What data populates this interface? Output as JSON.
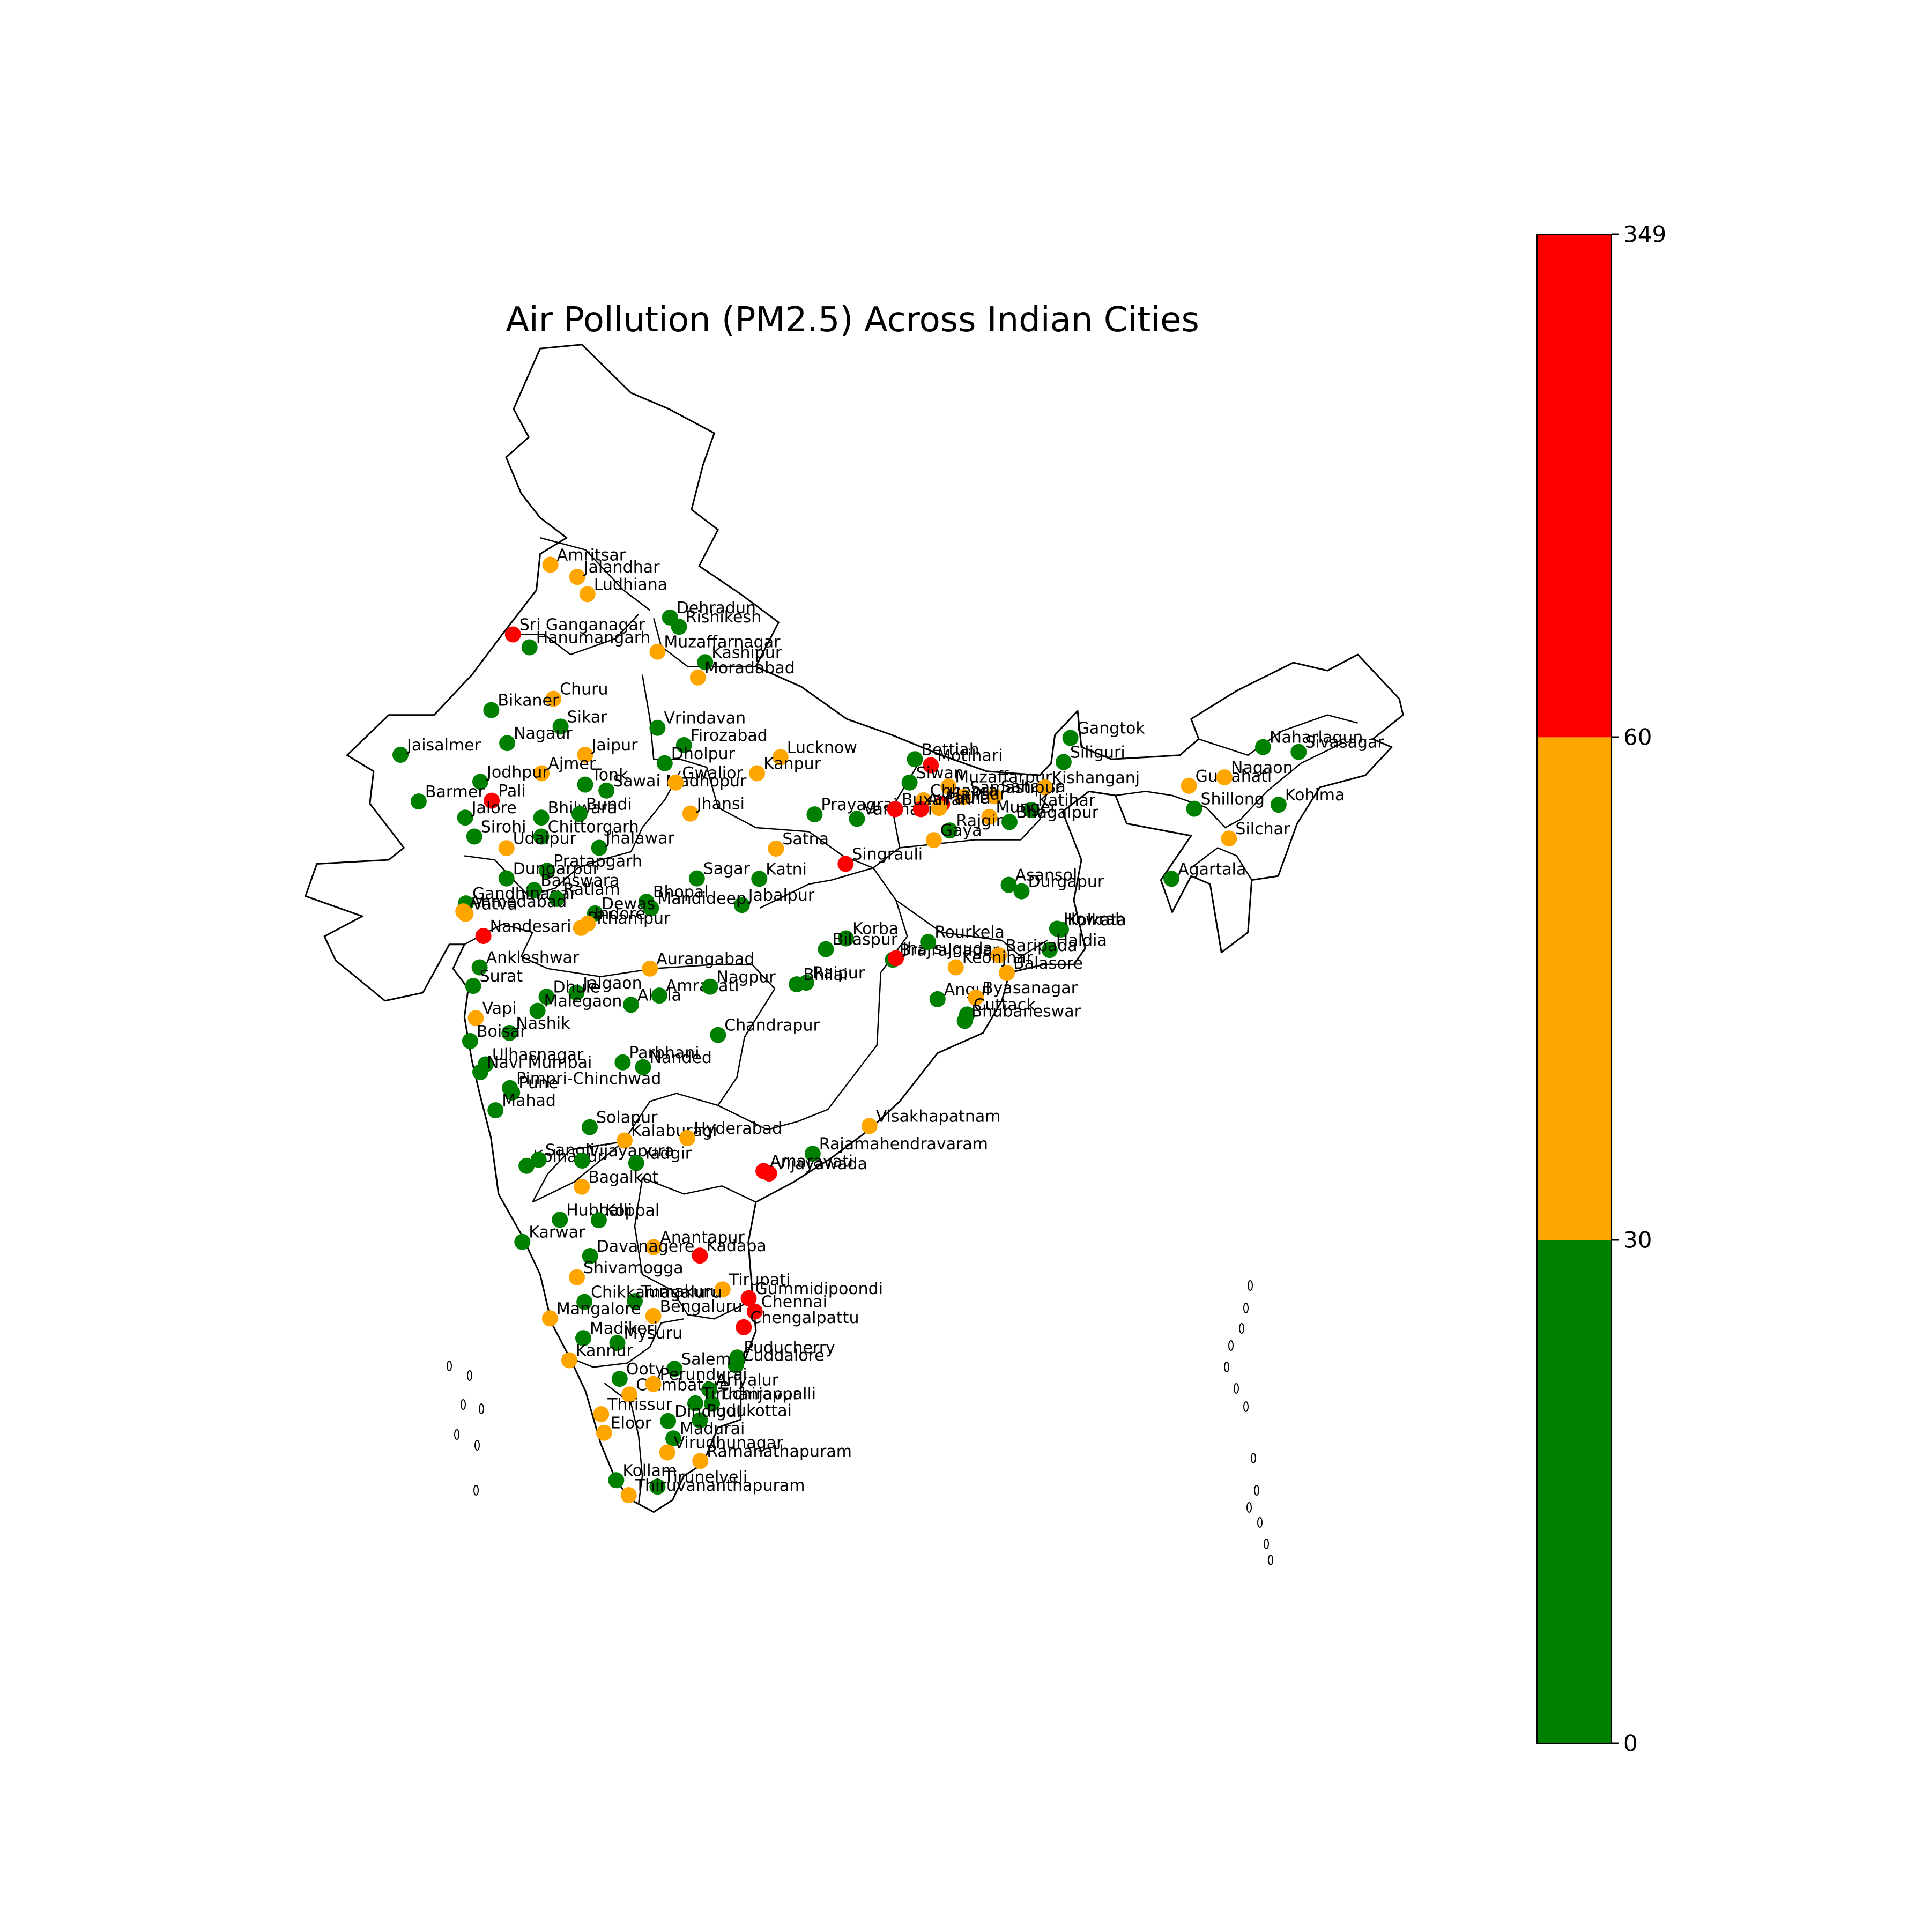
{
  "title": "Air Pollution (PM2.5) Across Indian Cities",
  "colorbar": {
    "bands": [
      {
        "from": 0,
        "to": 30,
        "color": "#008000"
      },
      {
        "from": 30,
        "to": 60,
        "color": "#ffa500"
      },
      {
        "from": 60,
        "to": 349,
        "color": "#ff0000"
      }
    ],
    "ticks": [
      "349",
      "60",
      "30",
      "0"
    ]
  },
  "cities": [
    {
      "name": "Amritsar",
      "lon": 74.87,
      "lat": 31.63,
      "cat": "orange"
    },
    {
      "name": "Jalandhar",
      "lon": 75.58,
      "lat": 31.33,
      "cat": "orange"
    },
    {
      "name": "Ludhiana",
      "lon": 75.85,
      "lat": 30.9,
      "cat": "orange"
    },
    {
      "name": "Sri Ganganagar",
      "lon": 73.88,
      "lat": 29.9,
      "cat": "red"
    },
    {
      "name": "Hanumangarh",
      "lon": 74.32,
      "lat": 29.58,
      "cat": "green"
    },
    {
      "name": "Dehradun",
      "lon": 78.03,
      "lat": 30.32,
      "cat": "green"
    },
    {
      "name": "Rishikesh",
      "lon": 78.27,
      "lat": 30.09,
      "cat": "green"
    },
    {
      "name": "Muzaffarnagar",
      "lon": 77.7,
      "lat": 29.47,
      "cat": "orange"
    },
    {
      "name": "Kashipur",
      "lon": 78.96,
      "lat": 29.21,
      "cat": "green"
    },
    {
      "name": "Moradabad",
      "lon": 78.77,
      "lat": 28.83,
      "cat": "orange"
    },
    {
      "name": "Churu",
      "lon": 74.95,
      "lat": 28.3,
      "cat": "orange"
    },
    {
      "name": "Bikaner",
      "lon": 73.31,
      "lat": 28.02,
      "cat": "green"
    },
    {
      "name": "Sikar",
      "lon": 75.14,
      "lat": 27.61,
      "cat": "green"
    },
    {
      "name": "Vrindavan",
      "lon": 77.7,
      "lat": 27.58,
      "cat": "green"
    },
    {
      "name": "Firozabad",
      "lon": 78.4,
      "lat": 27.15,
      "cat": "green"
    },
    {
      "name": "Jaisalmer",
      "lon": 70.91,
      "lat": 26.91,
      "cat": "green"
    },
    {
      "name": "Nagaur",
      "lon": 73.73,
      "lat": 27.2,
      "cat": "green"
    },
    {
      "name": "Jaipur",
      "lon": 75.79,
      "lat": 26.91,
      "cat": "orange"
    },
    {
      "name": "Dholpur",
      "lon": 77.89,
      "lat": 26.7,
      "cat": "green"
    },
    {
      "name": "Lucknow",
      "lon": 80.95,
      "lat": 26.85,
      "cat": "orange"
    },
    {
      "name": "Kanpur",
      "lon": 80.33,
      "lat": 26.45,
      "cat": "orange"
    },
    {
      "name": "Ajmer",
      "lon": 74.64,
      "lat": 26.45,
      "cat": "orange"
    },
    {
      "name": "Jodhpur",
      "lon": 73.02,
      "lat": 26.24,
      "cat": "green"
    },
    {
      "name": "Tonk",
      "lon": 75.79,
      "lat": 26.17,
      "cat": "green"
    },
    {
      "name": "Sawai Madhopur",
      "lon": 76.35,
      "lat": 26.02,
      "cat": "green"
    },
    {
      "name": "Gwalior",
      "lon": 78.18,
      "lat": 26.22,
      "cat": "orange"
    },
    {
      "name": "Barmer",
      "lon": 71.39,
      "lat": 25.75,
      "cat": "green"
    },
    {
      "name": "Pali",
      "lon": 73.32,
      "lat": 25.77,
      "cat": "red"
    },
    {
      "name": "Jalore",
      "lon": 72.62,
      "lat": 25.35,
      "cat": "green"
    },
    {
      "name": "Bhilwara",
      "lon": 74.63,
      "lat": 25.35,
      "cat": "green"
    },
    {
      "name": "Bundi",
      "lon": 75.64,
      "lat": 25.44,
      "cat": "green"
    },
    {
      "name": "Jhansi",
      "lon": 78.57,
      "lat": 25.45,
      "cat": "orange"
    },
    {
      "name": "Prayagraj",
      "lon": 81.85,
      "lat": 25.43,
      "cat": "green"
    },
    {
      "name": "Varanasi",
      "lon": 82.97,
      "lat": 25.32,
      "cat": "green"
    },
    {
      "name": "Sirohi",
      "lon": 72.86,
      "lat": 24.88,
      "cat": "green"
    },
    {
      "name": "Chittorgarh",
      "lon": 74.63,
      "lat": 24.88,
      "cat": "green"
    },
    {
      "name": "Jhalawar",
      "lon": 76.16,
      "lat": 24.6,
      "cat": "green"
    },
    {
      "name": "Udaipur",
      "lon": 73.71,
      "lat": 24.59,
      "cat": "orange"
    },
    {
      "name": "Satna",
      "lon": 80.83,
      "lat": 24.58,
      "cat": "orange"
    },
    {
      "name": "Singrauli",
      "lon": 82.67,
      "lat": 24.2,
      "cat": "red"
    },
    {
      "name": "Pratapgarh",
      "lon": 74.78,
      "lat": 24.03,
      "cat": "green"
    },
    {
      "name": "Dungarpur",
      "lon": 73.71,
      "lat": 23.84,
      "cat": "green"
    },
    {
      "name": "Banswara",
      "lon": 74.44,
      "lat": 23.55,
      "cat": "green"
    },
    {
      "name": "Sagar",
      "lon": 78.74,
      "lat": 23.84,
      "cat": "green"
    },
    {
      "name": "Katni",
      "lon": 80.39,
      "lat": 23.83,
      "cat": "green"
    },
    {
      "name": "Jabalpur",
      "lon": 79.93,
      "lat": 23.18,
      "cat": "green"
    },
    {
      "name": "Gandhinagar",
      "lon": 72.64,
      "lat": 23.22,
      "cat": "green"
    },
    {
      "name": "Ratlam",
      "lon": 75.04,
      "lat": 23.33,
      "cat": "green"
    },
    {
      "name": "Bhopal",
      "lon": 77.41,
      "lat": 23.26,
      "cat": "green"
    },
    {
      "name": "Mandideep",
      "lon": 77.53,
      "lat": 23.1,
      "cat": "green"
    },
    {
      "name": "Dewas",
      "lon": 76.05,
      "lat": 22.97,
      "cat": "green"
    },
    {
      "name": "Vatva",
      "lon": 72.63,
      "lat": 22.96,
      "cat": "orange"
    },
    {
      "name": "Ahmedabad",
      "lon": 72.57,
      "lat": 23.02,
      "cat": "orange"
    },
    {
      "name": "Pithampur",
      "lon": 75.68,
      "lat": 22.61,
      "cat": "orange"
    },
    {
      "name": "Indore",
      "lon": 75.86,
      "lat": 22.72,
      "cat": "orange"
    },
    {
      "name": "Nandesari",
      "lon": 73.1,
      "lat": 22.41,
      "cat": "red"
    },
    {
      "name": "Ankleshwar",
      "lon": 73.0,
      "lat": 21.63,
      "cat": "green"
    },
    {
      "name": "Surat",
      "lon": 72.83,
      "lat": 21.17,
      "cat": "green"
    },
    {
      "name": "Aurangabad",
      "lon": 77.5,
      "lat": 21.6,
      "cat": "orange"
    },
    {
      "name": "Jalgaon",
      "lon": 75.56,
      "lat": 21.0,
      "cat": "green"
    },
    {
      "name": "Dhule",
      "lon": 74.77,
      "lat": 20.9,
      "cat": "green"
    },
    {
      "name": "Malegaon",
      "lon": 74.53,
      "lat": 20.55,
      "cat": "green"
    },
    {
      "name": "Akola",
      "lon": 77.0,
      "lat": 20.7,
      "cat": "green"
    },
    {
      "name": "Amravati",
      "lon": 77.75,
      "lat": 20.93,
      "cat": "green"
    },
    {
      "name": "Nagpur",
      "lon": 79.09,
      "lat": 21.15,
      "cat": "green"
    },
    {
      "name": "Raipur",
      "lon": 81.63,
      "lat": 21.25,
      "cat": "green"
    },
    {
      "name": "Bhilai",
      "lon": 81.38,
      "lat": 21.21,
      "cat": "green"
    },
    {
      "name": "Korba",
      "lon": 82.68,
      "lat": 22.35,
      "cat": "green"
    },
    {
      "name": "Bilaspur",
      "lon": 82.15,
      "lat": 22.08,
      "cat": "green"
    },
    {
      "name": "Brajrajnagar",
      "lon": 83.92,
      "lat": 21.82,
      "cat": "green"
    },
    {
      "name": "Vapi",
      "lon": 72.9,
      "lat": 20.37,
      "cat": "orange"
    },
    {
      "name": "Nashik",
      "lon": 73.79,
      "lat": 20.0,
      "cat": "green"
    },
    {
      "name": "Boisar",
      "lon": 72.75,
      "lat": 19.8,
      "cat": "green"
    },
    {
      "name": "Chandrapur",
      "lon": 79.3,
      "lat": 19.95,
      "cat": "green"
    },
    {
      "name": "Ulhasnagar",
      "lon": 73.16,
      "lat": 19.22,
      "cat": "green"
    },
    {
      "name": "Navi Mumbai",
      "lon": 73.02,
      "lat": 19.03,
      "cat": "green"
    },
    {
      "name": "Parbhani",
      "lon": 76.78,
      "lat": 19.27,
      "cat": "green"
    },
    {
      "name": "Nanded",
      "lon": 77.32,
      "lat": 19.15,
      "cat": "green"
    },
    {
      "name": "Pimpri-Chinchwad",
      "lon": 73.8,
      "lat": 18.63,
      "cat": "green"
    },
    {
      "name": "Pune",
      "lon": 73.86,
      "lat": 18.52,
      "cat": "green"
    },
    {
      "name": "Mahad",
      "lon": 73.42,
      "lat": 18.08,
      "cat": "green"
    },
    {
      "name": "Solapur",
      "lon": 75.91,
      "lat": 17.66,
      "cat": "green"
    },
    {
      "name": "Kalaburagi",
      "lon": 76.83,
      "lat": 17.33,
      "cat": "orange"
    },
    {
      "name": "Hyderabad",
      "lon": 78.49,
      "lat": 17.39,
      "cat": "orange"
    },
    {
      "name": "Visakhapatnam",
      "lon": 83.3,
      "lat": 17.69,
      "cat": "orange"
    },
    {
      "name": "Rajamahendravaram",
      "lon": 81.8,
      "lat": 17.0,
      "cat": "green"
    },
    {
      "name": "Kolhapur",
      "lon": 74.24,
      "lat": 16.7,
      "cat": "green"
    },
    {
      "name": "Sangli",
      "lon": 74.56,
      "lat": 16.85,
      "cat": "green"
    },
    {
      "name": "Vijayapura",
      "lon": 75.71,
      "lat": 16.83,
      "cat": "green"
    },
    {
      "name": "Yadgir",
      "lon": 77.14,
      "lat": 16.77,
      "cat": "green"
    },
    {
      "name": "Vijayawada",
      "lon": 80.65,
      "lat": 16.51,
      "cat": "red"
    },
    {
      "name": "Amaravati",
      "lon": 80.5,
      "lat": 16.57,
      "cat": "red"
    },
    {
      "name": "Bagalkot",
      "lon": 75.7,
      "lat": 16.18,
      "cat": "orange"
    },
    {
      "name": "Hubballi",
      "lon": 75.12,
      "lat": 15.36,
      "cat": "green"
    },
    {
      "name": "Koppal",
      "lon": 76.15,
      "lat": 15.35,
      "cat": "green"
    },
    {
      "name": "Karwar",
      "lon": 74.13,
      "lat": 14.81,
      "cat": "green"
    },
    {
      "name": "Anantapur",
      "lon": 77.6,
      "lat": 14.68,
      "cat": "orange"
    },
    {
      "name": "Kadapa",
      "lon": 78.82,
      "lat": 14.47,
      "cat": "red"
    },
    {
      "name": "Davanagere",
      "lon": 75.92,
      "lat": 14.46,
      "cat": "green"
    },
    {
      "name": "Shivamogga",
      "lon": 75.57,
      "lat": 13.93,
      "cat": "orange"
    },
    {
      "name": "Tumakuru",
      "lon": 77.1,
      "lat": 13.34,
      "cat": "green"
    },
    {
      "name": "Tirupati",
      "lon": 79.42,
      "lat": 13.63,
      "cat": "orange"
    },
    {
      "name": "Gummidipoondi",
      "lon": 80.11,
      "lat": 13.41,
      "cat": "red"
    },
    {
      "name": "Chennai",
      "lon": 80.27,
      "lat": 13.08,
      "cat": "red"
    },
    {
      "name": "Chikkamagaluru",
      "lon": 75.77,
      "lat": 13.32,
      "cat": "green"
    },
    {
      "name": "Mangalore",
      "lon": 74.86,
      "lat": 12.91,
      "cat": "orange"
    },
    {
      "name": "Bengaluru",
      "lon": 77.59,
      "lat": 12.97,
      "cat": "orange"
    },
    {
      "name": "Chengalpattu",
      "lon": 79.98,
      "lat": 12.69,
      "cat": "red"
    },
    {
      "name": "Madikeri",
      "lon": 75.74,
      "lat": 12.42,
      "cat": "green"
    },
    {
      "name": "Mysuru",
      "lon": 76.64,
      "lat": 12.3,
      "cat": "green"
    },
    {
      "name": "Puducherry",
      "lon": 79.81,
      "lat": 11.94,
      "cat": "green"
    },
    {
      "name": "Cuddalore",
      "lon": 79.77,
      "lat": 11.75,
      "cat": "green"
    },
    {
      "name": "Salem",
      "lon": 78.15,
      "lat": 11.66,
      "cat": "green"
    },
    {
      "name": "Kannur",
      "lon": 75.37,
      "lat": 11.87,
      "cat": "orange"
    },
    {
      "name": "Ooty",
      "lon": 76.7,
      "lat": 11.41,
      "cat": "green"
    },
    {
      "name": "Coimbatore",
      "lon": 76.96,
      "lat": 11.02,
      "cat": "orange"
    },
    {
      "name": "Perundurai",
      "lon": 77.59,
      "lat": 11.28,
      "cat": "orange"
    },
    {
      "name": "Ariyalur",
      "lon": 79.07,
      "lat": 11.14,
      "cat": "green"
    },
    {
      "name": "Thanjavur",
      "lon": 79.14,
      "lat": 10.79,
      "cat": "green"
    },
    {
      "name": "Tiruchirappalli",
      "lon": 78.7,
      "lat": 10.8,
      "cat": "green"
    },
    {
      "name": "Thrissur",
      "lon": 76.21,
      "lat": 10.53,
      "cat": "orange"
    },
    {
      "name": "Pudukottai",
      "lon": 78.82,
      "lat": 10.38,
      "cat": "green"
    },
    {
      "name": "Dindigul",
      "lon": 77.98,
      "lat": 10.36,
      "cat": "green"
    },
    {
      "name": "Eloor",
      "lon": 76.29,
      "lat": 10.07,
      "cat": "orange"
    },
    {
      "name": "Madurai",
      "lon": 78.12,
      "lat": 9.93,
      "cat": "green"
    },
    {
      "name": "Virudhunagar",
      "lon": 77.96,
      "lat": 9.58,
      "cat": "orange"
    },
    {
      "name": "Ramanathapuram",
      "lon": 78.83,
      "lat": 9.37,
      "cat": "orange"
    },
    {
      "name": "Kollam",
      "lon": 76.61,
      "lat": 8.89,
      "cat": "green"
    },
    {
      "name": "Tirunelveli",
      "lon": 77.7,
      "lat": 8.73,
      "cat": "green"
    },
    {
      "name": "Thiruvananthapuram",
      "lon": 76.94,
      "lat": 8.52,
      "cat": "orange"
    },
    {
      "name": "Bettiah",
      "lon": 84.5,
      "lat": 26.8,
      "cat": "green"
    },
    {
      "name": "Motihari",
      "lon": 84.92,
      "lat": 26.65,
      "cat": "red"
    },
    {
      "name": "Siwan",
      "lon": 84.36,
      "lat": 26.22,
      "cat": "green"
    },
    {
      "name": "Muzaffarpur",
      "lon": 85.39,
      "lat": 26.12,
      "cat": "orange"
    },
    {
      "name": "Saharsa",
      "lon": 86.6,
      "lat": 25.88,
      "cat": "orange"
    },
    {
      "name": "Kishanganj",
      "lon": 87.94,
      "lat": 26.1,
      "cat": "orange"
    },
    {
      "name": "Chhapra",
      "lon": 84.73,
      "lat": 25.78,
      "cat": "orange"
    },
    {
      "name": "Samastipur",
      "lon": 85.78,
      "lat": 25.86,
      "cat": "orange"
    },
    {
      "name": "Hajipur",
      "lon": 85.22,
      "lat": 25.69,
      "cat": "red"
    },
    {
      "name": "Patna",
      "lon": 85.14,
      "lat": 25.59,
      "cat": "orange"
    },
    {
      "name": "Arrah",
      "lon": 84.66,
      "lat": 25.56,
      "cat": "red"
    },
    {
      "name": "Buxar",
      "lon": 83.98,
      "lat": 25.56,
      "cat": "red"
    },
    {
      "name": "Katihar",
      "lon": 87.58,
      "lat": 25.54,
      "cat": "green"
    },
    {
      "name": "Bhagalpur",
      "lon": 87.0,
      "lat": 25.24,
      "cat": "green"
    },
    {
      "name": "Munger",
      "lon": 86.47,
      "lat": 25.37,
      "cat": "orange"
    },
    {
      "name": "Rajgir",
      "lon": 85.42,
      "lat": 25.03,
      "cat": "green"
    },
    {
      "name": "Gaya",
      "lon": 85.0,
      "lat": 24.79,
      "cat": "orange"
    },
    {
      "name": "Gangtok",
      "lon": 88.61,
      "lat": 27.33,
      "cat": "green"
    },
    {
      "name": "Siliguri",
      "lon": 88.43,
      "lat": 26.73,
      "cat": "green"
    },
    {
      "name": "Asansol",
      "lon": 86.98,
      "lat": 23.68,
      "cat": "green"
    },
    {
      "name": "Durgapur",
      "lon": 87.32,
      "lat": 23.52,
      "cat": "green"
    },
    {
      "name": "Kolkata",
      "lon": 88.36,
      "lat": 22.57,
      "cat": "green"
    },
    {
      "name": "Howrah",
      "lon": 88.26,
      "lat": 22.59,
      "cat": "green"
    },
    {
      "name": "Haldia",
      "lon": 88.06,
      "lat": 22.06,
      "cat": "green"
    },
    {
      "name": "Jharsuguda",
      "lon": 84.0,
      "lat": 21.86,
      "cat": "red"
    },
    {
      "name": "Rourkela",
      "lon": 84.85,
      "lat": 22.26,
      "cat": "green"
    },
    {
      "name": "Baripada",
      "lon": 86.72,
      "lat": 21.93,
      "cat": "orange"
    },
    {
      "name": "Balasore",
      "lon": 86.93,
      "lat": 21.49,
      "cat": "orange"
    },
    {
      "name": "Keonjhar",
      "lon": 85.58,
      "lat": 21.63,
      "cat": "orange"
    },
    {
      "name": "Angul",
      "lon": 85.1,
      "lat": 20.84,
      "cat": "green"
    },
    {
      "name": "Byasanagar",
      "lon": 86.11,
      "lat": 20.88,
      "cat": "orange"
    },
    {
      "name": "Cuttack",
      "lon": 85.88,
      "lat": 20.46,
      "cat": "green"
    },
    {
      "name": "Bhubaneswar",
      "lon": 85.82,
      "lat": 20.3,
      "cat": "green"
    },
    {
      "name": "Guwahati",
      "lon": 91.74,
      "lat": 26.14,
      "cat": "orange"
    },
    {
      "name": "Nagaon",
      "lon": 92.68,
      "lat": 26.35,
      "cat": "orange"
    },
    {
      "name": "Naharlagun",
      "lon": 93.7,
      "lat": 27.1,
      "cat": "green"
    },
    {
      "name": "Sivasagar",
      "lon": 94.64,
      "lat": 26.98,
      "cat": "green"
    },
    {
      "name": "Shillong",
      "lon": 91.88,
      "lat": 25.57,
      "cat": "green"
    },
    {
      "name": "Kohima",
      "lon": 94.11,
      "lat": 25.67,
      "cat": "green"
    },
    {
      "name": "Silchar",
      "lon": 92.8,
      "lat": 24.83,
      "cat": "orange"
    },
    {
      "name": "Agartala",
      "lon": 91.28,
      "lat": 23.83,
      "cat": "green"
    }
  ]
}
